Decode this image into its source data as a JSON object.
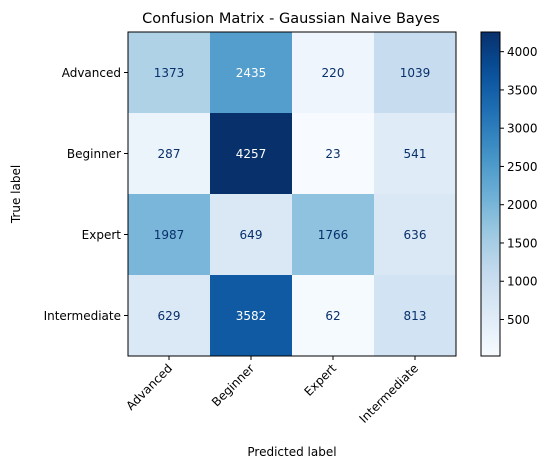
{
  "chart_data": {
    "type": "heatmap",
    "title": "Confusion Matrix - Gaussian Naive Bayes",
    "xlabel": "Predicted label",
    "ylabel": "True label",
    "x_categories": [
      "Advanced",
      "Beginner",
      "Expert",
      "Intermediate"
    ],
    "y_categories": [
      "Advanced",
      "Beginner",
      "Expert",
      "Intermediate"
    ],
    "values": [
      [
        1373,
        2435,
        220,
        1039
      ],
      [
        287,
        4257,
        23,
        541
      ],
      [
        1987,
        649,
        1766,
        636
      ],
      [
        629,
        3582,
        62,
        813
      ]
    ],
    "colormap": "Blues",
    "color_min": 23,
    "color_max": 4257,
    "colorbar_ticks": [
      500,
      1000,
      1500,
      2000,
      2500,
      3000,
      3500,
      4000
    ],
    "grid": false
  }
}
